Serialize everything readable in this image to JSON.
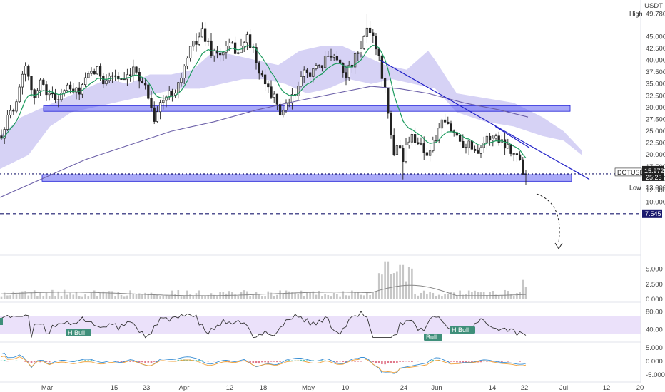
{
  "header": {
    "currency": "USDT"
  },
  "colors": {
    "up": "#222222",
    "down": "#222222",
    "ema": "#1c9b5e",
    "ma200": "#6b5fa8",
    "cloud": "#c8c3f2",
    "zone": "#6262f2",
    "zone_border": "#1b1bd6",
    "trendline": "#2222c8",
    "dashed": "#1a1a6e",
    "volume": "#c6c6c6",
    "volume_ma": "#888888",
    "rsi": "#333333",
    "rsi_band": "#e9defa",
    "rsi_band_line": "#c79adf",
    "macd": "#3a8fd4",
    "signal": "#f0a13a",
    "hist_pos": "#5cc9b7",
    "hist_neg": "#e0788a"
  },
  "price_axis": {
    "ticks": [
      "45.000",
      "42.500",
      "40.000",
      "37.500",
      "35.000",
      "32.500",
      "30.000",
      "27.500",
      "25.000",
      "22.500",
      "20.000",
      "17.500",
      "15.000",
      "12.500",
      "10.000"
    ],
    "high_label": "High",
    "high_value": "49.780",
    "low_label": "Low",
    "low_value": "13.000",
    "symbol_label": "DOTUSDT",
    "current_price": "15.972",
    "countdown": "25:23",
    "target_price": "7.545"
  },
  "volume_axis": {
    "ticks": [
      "5.000",
      "2.500",
      "0.000"
    ]
  },
  "rsi_axis": {
    "ticks": [
      "80.00",
      "40.00"
    ]
  },
  "macd_axis": {
    "ticks": [
      "5.000",
      "0.000",
      "-5.000"
    ]
  },
  "time_axis": [
    "Mar",
    "15",
    "23",
    "Apr",
    "12",
    "18",
    "May",
    "10",
    "24",
    "Jun",
    "14",
    "22",
    "Jul",
    "12",
    "20"
  ],
  "annotations": {
    "bull_labels": [
      "H Bull",
      "Bull",
      "H Bull"
    ]
  },
  "chart_data": {
    "type": "candlestick",
    "symbol": "DOTUSDT",
    "price_range": [
      5.0,
      50.0
    ],
    "high": 49.78,
    "low": 13.0,
    "last": 15.972,
    "target": 7.545,
    "support_zone": [
      29.2,
      30.4
    ],
    "lower_zone": [
      14.4,
      15.8
    ],
    "indicators": [
      "volume",
      "RSI",
      "MACD"
    ],
    "grid": false
  }
}
